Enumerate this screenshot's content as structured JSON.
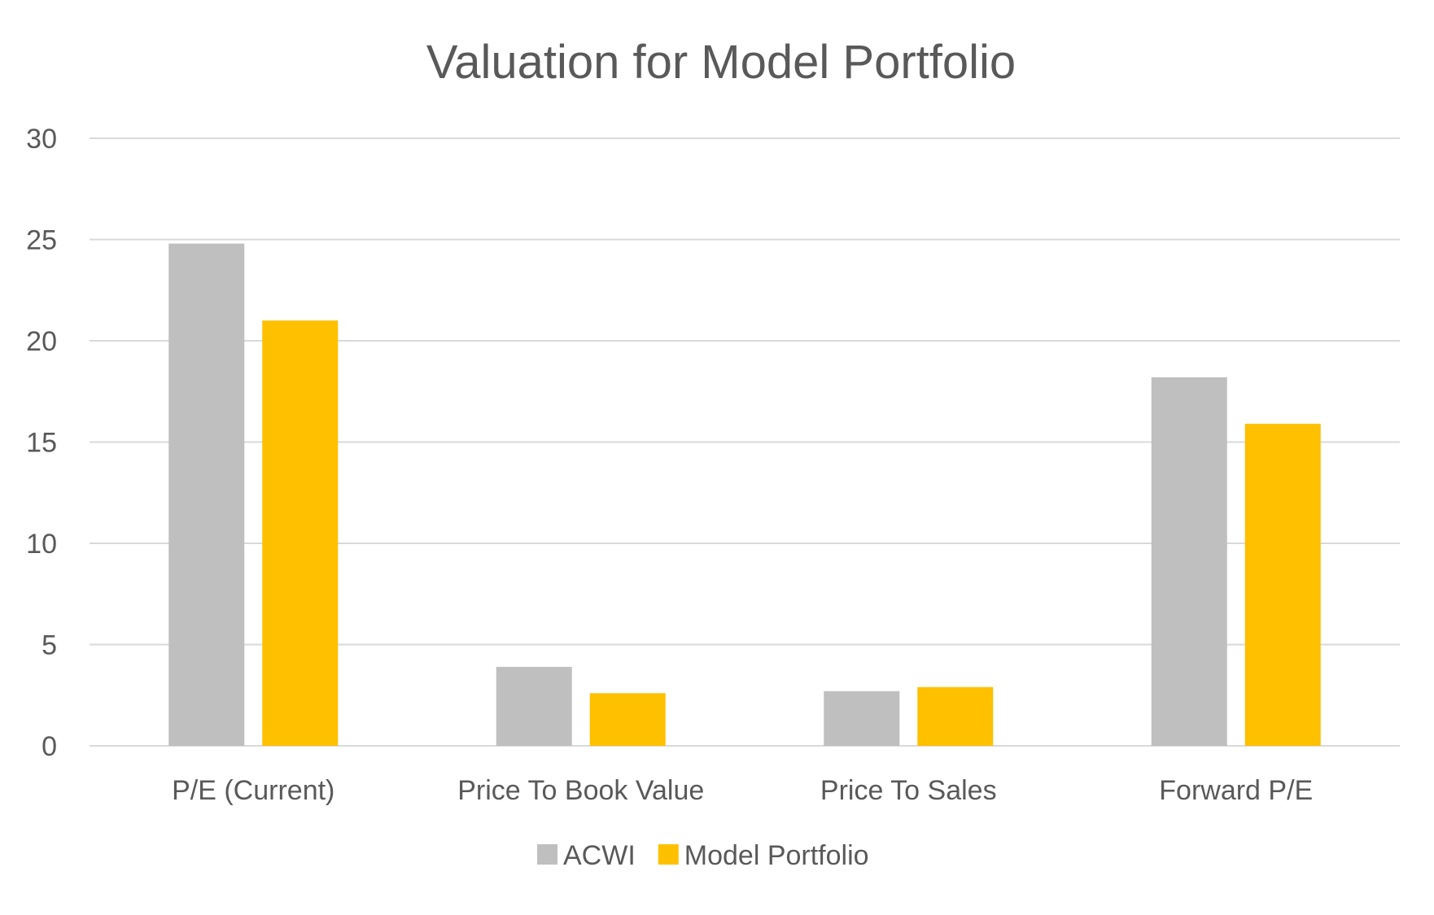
{
  "chart_data": {
    "type": "bar",
    "title": "Valuation for Model Portfolio",
    "xlabel": "",
    "ylabel": "",
    "categories": [
      "P/E (Current)",
      "Price To Book Value",
      "Price To Sales",
      "Forward P/E"
    ],
    "series": [
      {
        "name": "ACWI",
        "color": "#bfbfbf",
        "values": [
          24.8,
          3.9,
          2.7,
          18.2
        ]
      },
      {
        "name": "Model Portfolio",
        "color": "#ffc000",
        "values": [
          21.0,
          2.6,
          2.9,
          15.9
        ]
      }
    ],
    "ylim": [
      0,
      30
    ],
    "yticks": [
      0,
      5,
      10,
      15,
      20,
      25,
      30
    ],
    "grid": true,
    "legend": "bottom"
  }
}
